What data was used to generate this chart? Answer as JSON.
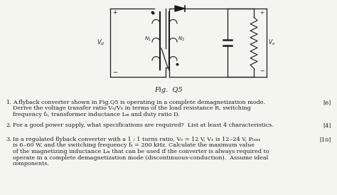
{
  "fig_label": "Fig.  Q5",
  "background_color": "#f5f5f0",
  "text_color": "#1a1a1a",
  "q1_num": "1.",
  "q1_line1": "A flyback converter shown in Fig.Q5 is operating in a complete demagnetization mode.",
  "q1_line2": "Derive the voltage transfer ratio Vₒ/Vₓ in terms of the load resistance R, switching",
  "q1_line3": "frequency fₛ, transformer inductance Lₘ and duty ratio D.",
  "q1_mark": "[6]",
  "q2_num": "2.",
  "q2_line1": "For a good power supply, what specifications are required?  List at least 4 characteristics.",
  "q2_mark": "[4]",
  "q3_num": "3.",
  "q3_line1": "In a regulated flyback converter with a 1 : 1 turns ratio, Vₒ = 12 V, Vₓ is 12‒24 V, Pₗₒₐₓ",
  "q3_line2": "is 6‒60 W, and the switching frequency fₛ = 200 kHz. Calculate the maximum value",
  "q3_line3": "of the magnetizing inductance Lₘ that can be used if the converter is always required to",
  "q3_line4": "operate in a complete demagnetization mode (discontinuous-conduction).  Assume ideal",
  "q3_line5": "components.",
  "q3_mark": "[10]"
}
